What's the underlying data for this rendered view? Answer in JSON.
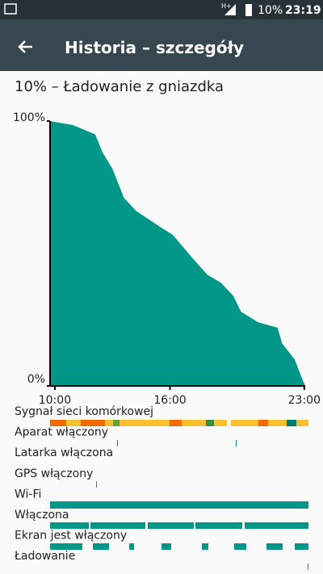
{
  "status_bar": {
    "network": "H+",
    "battery": "10%",
    "time": "23:19"
  },
  "app_bar": {
    "title": "Historia – szczegóły"
  },
  "summary": "10% – Ładowanie z gniazdka",
  "chart_data": {
    "type": "area",
    "color": "#009688",
    "x": [
      9.75,
      10.93,
      12.1,
      12.5,
      13.0,
      13.6,
      14.25,
      15.5,
      16.15,
      17.2,
      17.95,
      18.65,
      19.3,
      19.7,
      20.6,
      21.6,
      21.85,
      22.5,
      22.9,
      23.05
    ],
    "values": [
      100,
      98.5,
      95,
      88,
      82,
      71,
      66,
      60,
      57,
      48,
      42,
      39,
      34,
      28,
      24,
      22,
      16,
      10,
      2.5,
      0
    ],
    "xlim": [
      9.75,
      23.05
    ],
    "ylim": [
      0,
      100
    ],
    "xticks": [
      {
        "value": 10,
        "label": "10:00"
      },
      {
        "value": 16,
        "label": "16:00"
      },
      {
        "value": 23,
        "label": "23:00"
      }
    ],
    "yticks": [
      {
        "value": 100,
        "label": "100%"
      },
      {
        "value": 0,
        "label": "0%"
      }
    ]
  },
  "activity": [
    "Sygnał sieci komórkowej",
    "Aparat włączony",
    "Latarka włączona",
    "GPS włączony",
    "Wi-Fi",
    "Włączona",
    "Ekran jest włączony",
    "Ładowanie"
  ]
}
